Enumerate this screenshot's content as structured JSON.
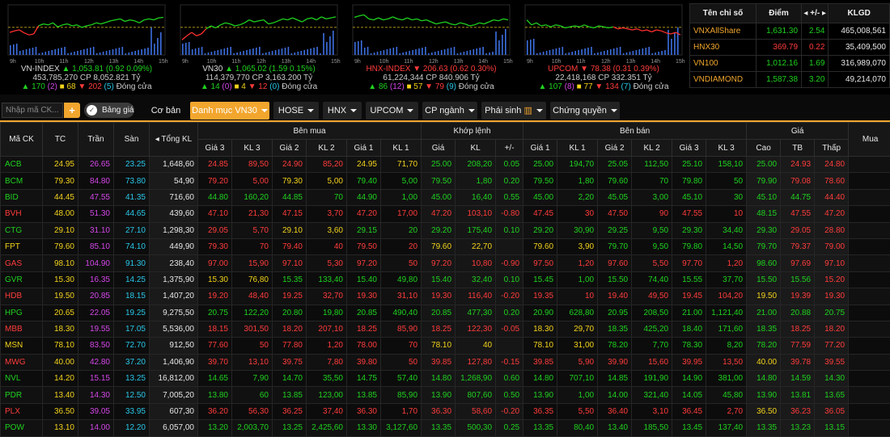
{
  "app": {
    "title": "Bảng giá"
  },
  "indices": [
    {
      "name": "VN-INDEX",
      "dir": "up",
      "value": "1,053.81",
      "change": "(0.92 0.09%)",
      "volume": "453,785,270",
      "cp": "CP 8,052.821 Tỷ",
      "up_count": "170",
      "ceil_count": "(2)",
      "ref_count": "68",
      "down_count": "202",
      "floor_count": "(5)",
      "status": "Đóng cửa",
      "line": [
        0.55,
        0.52,
        0.5,
        0.56,
        0.6,
        0.58,
        0.42,
        0.38,
        0.4,
        0.36,
        0.44,
        0.4,
        0.38,
        0.42,
        0.4,
        0.45,
        0.42,
        0.4,
        0.36,
        0.38,
        0.35,
        0.32,
        0.3,
        0.28,
        0.33,
        0.3,
        0.32,
        0.36,
        0.3,
        0.28,
        0.3,
        0.26,
        0.25
      ]
    },
    {
      "name": "VN30",
      "dir": "up",
      "value": "1,065.02",
      "change": "(1.59 0.15%)",
      "volume": "114,379,770",
      "cp": "CP 3,163.200 Tỷ",
      "up_count": "14",
      "ceil_count": "(0)",
      "ref_count": "4",
      "down_count": "12",
      "floor_count": "(0)",
      "status": "Đóng cửa",
      "line": [
        0.7,
        0.62,
        0.55,
        0.62,
        0.58,
        0.48,
        0.42,
        0.46,
        0.4,
        0.36,
        0.38,
        0.42,
        0.4,
        0.36,
        0.3,
        0.34,
        0.32,
        0.3,
        0.38,
        0.36,
        0.32,
        0.28,
        0.3,
        0.26,
        0.3,
        0.34,
        0.28,
        0.26,
        0.3,
        0.24,
        0.28,
        0.26,
        0.24
      ]
    },
    {
      "name": "HNX-INDEX",
      "dir": "down",
      "value": "206.63",
      "change": "(0.62 0.30%)",
      "volume": "61,224,344",
      "cp": "CP 840.906 Tỷ",
      "up_count": "86",
      "ceil_count": "(12)",
      "ref_count": "57",
      "down_count": "79",
      "floor_count": "(9)",
      "status": "Đóng cửa",
      "line": [
        0.25,
        0.22,
        0.2,
        0.28,
        0.3,
        0.26,
        0.3,
        0.28,
        0.24,
        0.28,
        0.3,
        0.26,
        0.3,
        0.28,
        0.32,
        0.3,
        0.34,
        0.38,
        0.36,
        0.34,
        0.38,
        0.4,
        0.36,
        0.38,
        0.42,
        0.4,
        0.36,
        0.38,
        0.34,
        0.3,
        0.32,
        0.28,
        0.3
      ]
    },
    {
      "name": "UPCOM",
      "dir": "down",
      "value": "78.38",
      "change": "(0.31 0.39%)",
      "volume": "22,418,168",
      "cp": "CP 332.351 Tỷ",
      "up_count": "107",
      "ceil_count": "(8)",
      "ref_count": "77",
      "down_count": "134",
      "floor_count": "(7)",
      "status": "Đóng cửa",
      "line": [
        0.3,
        0.4,
        0.36,
        0.42,
        0.4,
        0.44,
        0.4,
        0.42,
        0.46,
        0.44,
        0.42,
        0.44,
        0.4,
        0.44,
        0.46,
        0.42,
        0.44,
        0.46,
        0.44,
        0.48,
        0.46,
        0.48,
        0.5,
        0.48,
        0.52,
        0.5,
        0.54,
        0.5,
        0.52,
        0.56,
        0.58,
        0.55,
        0.6
      ]
    }
  ],
  "time_axis": [
    "9h",
    "10h",
    "11h",
    "12h",
    "13h",
    "14h",
    "15h"
  ],
  "summary": {
    "headers": [
      "Tên chỉ số",
      "Điểm",
      "+/-",
      "KLGD"
    ],
    "rows": [
      {
        "name": "VNXAllShare",
        "point": "1,631.30",
        "change": "2.54",
        "dir": "up",
        "vol": "465,008,561"
      },
      {
        "name": "HNX30",
        "point": "369.79",
        "change": "0.22",
        "dir": "down",
        "vol": "35,409,500"
      },
      {
        "name": "VN100",
        "point": "1,012.16",
        "change": "1.69",
        "dir": "up",
        "vol": "316,989,070"
      },
      {
        "name": "VNDIAMOND",
        "point": "1,587.38",
        "change": "3.20",
        "dir": "up",
        "vol": "49,214,070"
      }
    ]
  },
  "toolbar": {
    "search_placeholder": "Nhập mã CK...",
    "add_label": "+",
    "toggle_label": "Bảng giá",
    "tabs": [
      "Cơ bản",
      "Danh mục VN30",
      "HOSE",
      "HNX",
      "UPCOM",
      "CP ngành",
      "Phái sinh",
      "Chứng quyền"
    ]
  },
  "board": {
    "group_headers": [
      "Bên mua",
      "Khớp lệnh",
      "Bên bán",
      "Giá"
    ],
    "columns": [
      "Mã CK",
      "TC",
      "Trần",
      "Sàn",
      "Tổng KL",
      "Giá 3",
      "KL 3",
      "Giá 2",
      "KL 2",
      "Giá 1",
      "KL 1",
      "Giá",
      "KL",
      "+/-",
      "Giá 1",
      "KL 1",
      "Giá 2",
      "KL 2",
      "Giá 3",
      "KL 3",
      "Cao",
      "TB",
      "Thấp",
      "Mua"
    ],
    "rows": [
      {
        "c": [
          "ACB",
          "24.95",
          "26.65",
          "23.25",
          "1,648,60",
          "24.85",
          "89,50",
          "24.90",
          "85,20",
          "24.95",
          "71,70",
          "25.00",
          "208,20",
          "0.05",
          "25.00",
          "194,70",
          "25.05",
          "112,50",
          "25.10",
          "158,10",
          "25.00",
          "24.93",
          "24.80",
          ""
        ],
        "k": "uyreddueuuuuuuuuuudyd"
      },
      {
        "c": [
          "BCM",
          "79.30",
          "84.80",
          "73.80",
          "54,90",
          "79.20",
          "5,00",
          "79.30",
          "5,00",
          "79.40",
          "5,00",
          "79.50",
          "1,80",
          "0.20",
          "79.50",
          "1,80",
          "79.60",
          "70",
          "79.80",
          "50",
          "79.90",
          "79.08",
          "78.60",
          ""
        ],
        "k": "dyyuuuuuuuuuuuuuudd"
      },
      {
        "c": [
          "BID",
          "44.45",
          "47.55",
          "41.35",
          "716,60",
          "44.80",
          "160,20",
          "44.85",
          "70",
          "44.90",
          "1,00",
          "45.00",
          "16,40",
          "0.55",
          "45.00",
          "2,20",
          "45.05",
          "3,00",
          "45.10",
          "30",
          "45.10",
          "44.75",
          "44.40",
          ""
        ],
        "k": "uuuuuuuuuuuuuuuuuud"
      },
      {
        "c": [
          "BVH",
          "48.00",
          "51.30",
          "44.65",
          "439,60",
          "47.10",
          "21,30",
          "47.15",
          "3,70",
          "47.20",
          "17,00",
          "47.20",
          "103,10",
          "-0.80",
          "47.45",
          "30",
          "47.50",
          "90",
          "47.55",
          "10",
          "48.15",
          "47.55",
          "47.20",
          ""
        ],
        "k": "ddddddddddddddddudd"
      },
      {
        "c": [
          "CTG",
          "29.10",
          "31.10",
          "27.10",
          "1,298,30",
          "29.05",
          "5,70",
          "29.10",
          "3,60",
          "29.15",
          "20",
          "29.20",
          "175,40",
          "0.10",
          "29.20",
          "30,90",
          "29.25",
          "9,50",
          "29.30",
          "34,40",
          "29.30",
          "29.05",
          "28.80",
          ""
        ],
        "k": "dduuuuuuuuuuuuuuudd"
      },
      {
        "c": [
          "FPT",
          "79.60",
          "85.10",
          "74.10",
          "449,90",
          "79.30",
          "70",
          "79.40",
          "40",
          "79.50",
          "20",
          "79.60",
          "22,70",
          "",
          "79.60",
          "3,90",
          "79.70",
          "9,50",
          "79.80",
          "14,50",
          "79.70",
          "79.37",
          "79.00",
          ""
        ],
        "k": "ddddddyyyyyuuuuuudd"
      },
      {
        "c": [
          "GAS",
          "98.10",
          "104.90",
          "91.30",
          "238,40",
          "97.00",
          "15,90",
          "97.10",
          "5,30",
          "97.20",
          "50",
          "97.20",
          "10,80",
          "-0.90",
          "97.50",
          "1,20",
          "97.60",
          "5,50",
          "97.70",
          "1,20",
          "98.60",
          "97.69",
          "97.10",
          ""
        ],
        "k": "dddddddddddddddduddd"
      },
      {
        "c": [
          "GVR",
          "15.30",
          "16.35",
          "14.25",
          "1,375,90",
          "15.30",
          "76,80",
          "15.35",
          "133,40",
          "15.40",
          "49,80",
          "15.40",
          "32,40",
          "0.10",
          "15.45",
          "1,00",
          "15.50",
          "74,40",
          "15.55",
          "37,70",
          "15.50",
          "15.56",
          "15.20",
          ""
        ],
        "k": "yyuuuuuuuuuuuuuuuud"
      },
      {
        "c": [
          "HDB",
          "19.50",
          "20.85",
          "18.15",
          "1,407,20",
          "19.20",
          "48,40",
          "19.25",
          "32,70",
          "19.30",
          "31,10",
          "19.30",
          "116,40",
          "-0.20",
          "19.35",
          "10",
          "19.40",
          "49,50",
          "19.45",
          "104,20",
          "19.50",
          "19.39",
          "19.30",
          ""
        ],
        "k": "dddddddddddddddddydd"
      },
      {
        "c": [
          "HPG",
          "20.65",
          "22.05",
          "19.25",
          "9,275,50",
          "20.75",
          "122,20",
          "20.80",
          "19,80",
          "20.85",
          "490,40",
          "20.85",
          "477,30",
          "0.20",
          "20.90",
          "628,80",
          "20.95",
          "208,50",
          "21.00",
          "1,121,40",
          "21.00",
          "20.88",
          "20.75",
          ""
        ],
        "k": "uuuuuuuuuuuuuuuuuuu"
      },
      {
        "c": [
          "MBB",
          "18.30",
          "19.55",
          "17.05",
          "5,536,00",
          "18.15",
          "301,50",
          "18.20",
          "207,10",
          "18.25",
          "85,90",
          "18.25",
          "122,30",
          "-0.05",
          "18.30",
          "29,70",
          "18.35",
          "425,20",
          "18.40",
          "171,60",
          "18.35",
          "18.25",
          "18.20",
          ""
        ],
        "k": "ddddddddddyyuuuuuudd"
      },
      {
        "c": [
          "MSN",
          "78.10",
          "83.50",
          "72.70",
          "912,50",
          "77.60",
          "50",
          "77.80",
          "1,20",
          "78.00",
          "70",
          "78.10",
          "40",
          "",
          "78.10",
          "31,00",
          "78.20",
          "7,70",
          "78.30",
          "8,20",
          "78.20",
          "77.59",
          "77.20",
          ""
        ],
        "k": "ddddddyyyyyuuuuuudd"
      },
      {
        "c": [
          "MWG",
          "40.00",
          "42.80",
          "37.20",
          "1,406,90",
          "39.70",
          "13,10",
          "39.75",
          "7,80",
          "39.80",
          "50",
          "39.85",
          "127,80",
          "-0.15",
          "39.85",
          "5,90",
          "39.90",
          "15,60",
          "39.95",
          "13,50",
          "40.00",
          "39.78",
          "39.55",
          ""
        ],
        "k": "ddddddddddddddddydd"
      },
      {
        "c": [
          "NVL",
          "14.20",
          "15.15",
          "13.25",
          "16,812,00",
          "14.65",
          "7,90",
          "14.70",
          "35,50",
          "14.75",
          "57,40",
          "14.80",
          "1,268,90",
          "0.60",
          "14.80",
          "707,10",
          "14.85",
          "191,90",
          "14.90",
          "381,00",
          "14.80",
          "14.59",
          "14.30",
          ""
        ],
        "k": "uuuuuuuuuuuuuuuuuuu"
      },
      {
        "c": [
          "PDR",
          "13.40",
          "14.30",
          "12.50",
          "7,005,20",
          "13.80",
          "60",
          "13.85",
          "123,00",
          "13.85",
          "85,90",
          "13.90",
          "807,60",
          "0.50",
          "13.90",
          "1,00",
          "14.00",
          "321,40",
          "14.05",
          "45,80",
          "13.90",
          "13.81",
          "13.65",
          ""
        ],
        "k": "uuuuuuuuuuuuuuuuuuu"
      },
      {
        "c": [
          "PLX",
          "36.50",
          "39.05",
          "33.95",
          "607,30",
          "36.20",
          "56,30",
          "36.25",
          "37,40",
          "36.30",
          "1,70",
          "36.30",
          "58,60",
          "-0.20",
          "36.35",
          "5,50",
          "36.40",
          "3,10",
          "36.45",
          "2,70",
          "36.50",
          "36.23",
          "36.05",
          ""
        ],
        "k": "ddddddddddddddddyddd"
      },
      {
        "c": [
          "POW",
          "13.10",
          "14.00",
          "12.20",
          "6,057,00",
          "13.20",
          "2,003,70",
          "13.25",
          "2,425,60",
          "13.30",
          "3,127,60",
          "13.35",
          "500,30",
          "0.25",
          "13.35",
          "80,40",
          "13.40",
          "185,50",
          "13.45",
          "137,40",
          "13.35",
          "13.23",
          "13.15",
          ""
        ],
        "k": "uuuuuuuuuuuuuuuuuuu"
      }
    ]
  }
}
